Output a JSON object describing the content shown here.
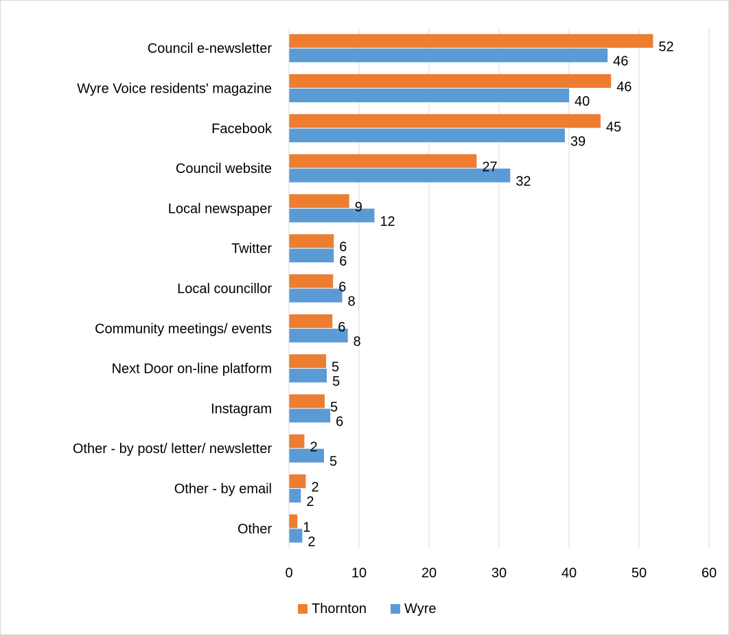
{
  "chart_data": {
    "type": "bar",
    "orientation": "horizontal",
    "title": "",
    "xlabel": "",
    "ylabel": "",
    "xlim": [
      0,
      60
    ],
    "x_ticks": [
      0,
      10,
      20,
      30,
      40,
      50,
      60
    ],
    "grid": true,
    "legend_position": "bottom",
    "categories": [
      "Council e-newsletter",
      "Wyre Voice residents' magazine",
      "Facebook",
      "Council website",
      "Local newspaper",
      "Twitter",
      "Local councillor",
      "Community meetings/ events",
      "Next Door on-line platform",
      "Instagram",
      "Other - by post/ letter/ newsletter",
      "Other - by email",
      "Other"
    ],
    "series": [
      {
        "name": "Thornton",
        "color": "#ED7D31",
        "values": [
          52,
          46,
          44.5,
          26.8,
          8.6,
          6.4,
          6.3,
          6.2,
          5.3,
          5.1,
          2.2,
          2.4,
          1.2
        ],
        "labels": [
          "52",
          "46",
          "45",
          "27",
          "9",
          "6",
          "6",
          "6",
          "5",
          "5",
          "2",
          "2",
          "1"
        ]
      },
      {
        "name": "Wyre",
        "color": "#5B9BD5",
        "values": [
          45.5,
          40.0,
          39.4,
          31.6,
          12.2,
          6.4,
          7.6,
          8.4,
          5.4,
          5.9,
          5.0,
          1.7,
          1.9
        ],
        "labels": [
          "46",
          "40",
          "39",
          "32",
          "12",
          "6",
          "8",
          "8",
          "5",
          "6",
          "5",
          "2",
          "2"
        ]
      }
    ],
    "grid_color": "#d9d9d9"
  }
}
